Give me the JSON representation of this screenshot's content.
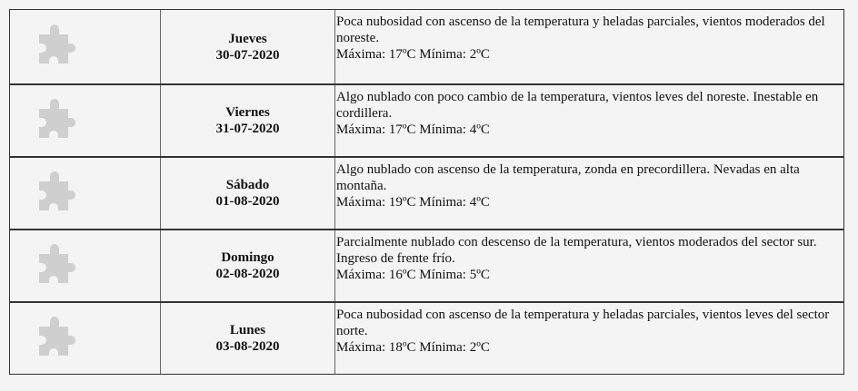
{
  "forecast": [
    {
      "icon": "puzzle-piece-icon",
      "day": "Jueves",
      "date": "30-07-2020",
      "description": "Poca nubosidad con ascenso de la temperatura y heladas parciales, vientos moderados del noreste.",
      "temps": "Máxima: 17ºC Mínima: 2ºC"
    },
    {
      "icon": "puzzle-piece-icon",
      "day": "Viernes",
      "date": "31-07-2020",
      "description": "Algo nublado con poco cambio de la temperatura, vientos leves del noreste. Inestable en cordillera.",
      "temps": "Máxima: 17ºC Mínima: 4ºC"
    },
    {
      "icon": "puzzle-piece-icon",
      "day": "Sábado",
      "date": "01-08-2020",
      "description": "Algo nublado con ascenso de la temperatura, zonda en precordillera. Nevadas en alta montaña.",
      "temps": "Máxima: 19ºC Mínima: 4ºC"
    },
    {
      "icon": "puzzle-piece-icon",
      "day": "Domingo",
      "date": "02-08-2020",
      "description": "Parcialmente nublado con descenso de la temperatura, vientos moderados del sector sur. Ingreso de frente frío.",
      "temps": "Máxima: 16ºC Mínima: 5ºC"
    },
    {
      "icon": "puzzle-piece-icon",
      "day": "Lunes",
      "date": "03-08-2020",
      "description": "Poca nubosidad con ascenso de la temperatura y heladas parciales, vientos leves del sector norte.",
      "temps": "Máxima: 18ºC Mínima: 2ºC"
    }
  ]
}
